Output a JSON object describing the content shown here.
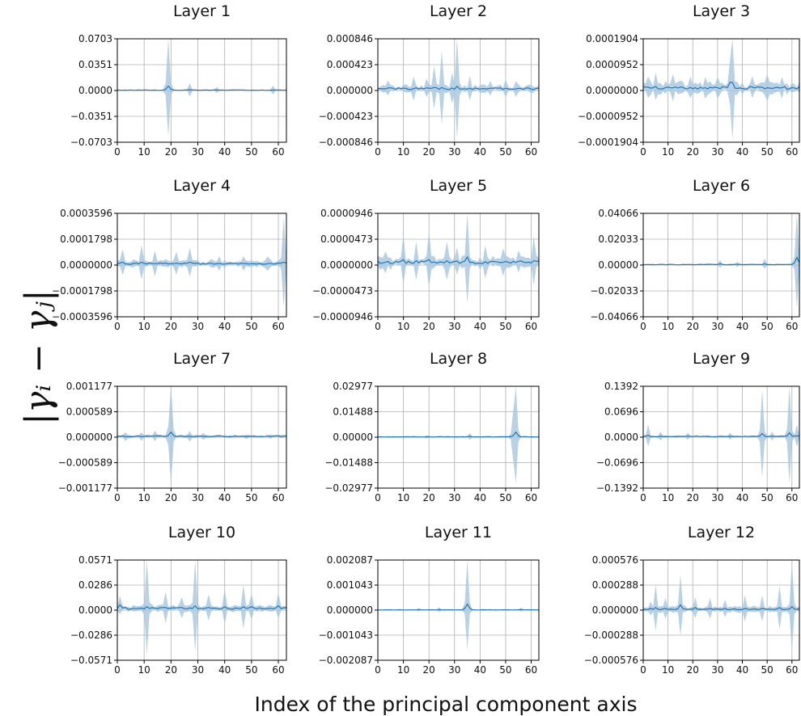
{
  "figure": {
    "xlabel": "Index of the principal component axis",
    "ylabel": "|γᵢ − γⱼ|"
  },
  "style": {
    "line_color": "#1f77b4",
    "band_color": "#a6c6de",
    "grid_color": "#b0b0b0"
  },
  "chart_data": [
    {
      "type": "area",
      "title": "Layer 1",
      "xlim": [
        0,
        63
      ],
      "ylim": [
        -0.0703,
        0.0703
      ],
      "yticks": [
        "0.0703",
        "0.0351",
        "0.0000",
        "−0.0351",
        "−0.0703"
      ],
      "xticks": [
        "0",
        "10",
        "20",
        "30",
        "40",
        "50",
        "60"
      ],
      "spikes": [
        [
          19,
          0.068,
          0.006
        ],
        [
          27,
          0.009,
          0.001
        ],
        [
          37,
          0.004,
          0
        ],
        [
          58,
          0.006,
          0
        ]
      ],
      "baseline": 0.0005,
      "noise": 0.001
    },
    {
      "type": "area",
      "title": "Layer 2",
      "xlim": [
        0,
        63
      ],
      "ylim": [
        -0.000846,
        0.000846
      ],
      "yticks": [
        "0.000846",
        "0.000423",
        "0.000000",
        "−0.000423",
        "−0.000846"
      ],
      "xticks": [
        "0",
        "10",
        "20",
        "30",
        "40",
        "50",
        "60"
      ],
      "spikes": [
        [
          4,
          0.00012,
          2e-05
        ],
        [
          14,
          0.0002,
          3e-05
        ],
        [
          19,
          0.00015,
          3e-05
        ],
        [
          22,
          0.00035,
          5e-05
        ],
        [
          25,
          0.0006,
          5e-05
        ],
        [
          29,
          0.00025,
          4e-05
        ],
        [
          31,
          0.00085,
          7e-05
        ],
        [
          36,
          0.0002,
          4e-05
        ],
        [
          44,
          0.00012,
          2e-05
        ],
        [
          50,
          0.00015,
          2e-05
        ],
        [
          54,
          0.00013,
          2e-05
        ]
      ],
      "baseline": 3e-05,
      "noise": 7e-05
    },
    {
      "type": "area",
      "title": "Layer 3",
      "xlim": [
        0,
        63
      ],
      "ylim": [
        -0.0001904,
        0.0001904
      ],
      "yticks": [
        "0.0001904",
        "0.0000952",
        "0.0000000",
        "−0.0000952",
        "−0.0001904"
      ],
      "xticks": [
        "0",
        "10",
        "20",
        "30",
        "40",
        "50",
        "60"
      ],
      "spikes": [
        [
          2,
          4e-05,
          1e-05
        ],
        [
          5,
          5e-05,
          1e-05
        ],
        [
          12,
          5e-05,
          1e-05
        ],
        [
          19,
          4e-05,
          1e-05
        ],
        [
          25,
          4e-05,
          1e-05
        ],
        [
          30,
          4e-05,
          1e-05
        ],
        [
          35,
          8e-05,
          3e-05
        ],
        [
          36,
          0.00021,
          3e-05
        ],
        [
          44,
          4e-05,
          1e-05
        ],
        [
          50,
          5e-05,
          1e-05
        ],
        [
          56,
          4e-05,
          1e-05
        ]
      ],
      "baseline": 1e-05,
      "noise": 2.5e-05
    },
    {
      "type": "area",
      "title": "Layer 4",
      "xlim": [
        0,
        63
      ],
      "ylim": [
        -0.0003596,
        0.0003596
      ],
      "yticks": [
        "0.0003596",
        "0.0001798",
        "0.0000000",
        "−0.0001798",
        "−0.0003596"
      ],
      "xticks": [
        "0",
        "10",
        "20",
        "30",
        "40",
        "50",
        "60"
      ],
      "spikes": [
        [
          2,
          9e-05,
          2e-05
        ],
        [
          9,
          0.00012,
          2e-05
        ],
        [
          14,
          9e-05,
          1e-05
        ],
        [
          22,
          8e-05,
          1e-05
        ],
        [
          27,
          0.0001,
          2e-05
        ],
        [
          38,
          5e-05,
          1e-05
        ],
        [
          47,
          5e-05,
          1e-05
        ],
        [
          56,
          5e-05,
          1e-05
        ],
        [
          62,
          0.00031,
          2e-05
        ]
      ],
      "baseline": 1e-05,
      "noise": 3e-05
    },
    {
      "type": "area",
      "title": "Layer 5",
      "xlim": [
        0,
        63
      ],
      "ylim": [
        -9.46e-05,
        9.46e-05
      ],
      "yticks": [
        "0.0000946",
        "0.0000473",
        "0.0000000",
        "−0.0000473",
        "−0.0000946"
      ],
      "xticks": [
        "0",
        "10",
        "20",
        "30",
        "40",
        "50",
        "60"
      ],
      "spikes": [
        [
          3,
          2e-05,
          5e-06
        ],
        [
          10,
          4.5e-05,
          1e-05
        ],
        [
          15,
          3.5e-05,
          8e-06
        ],
        [
          20,
          5e-05,
          1e-05
        ],
        [
          27,
          3.5e-05,
          8e-06
        ],
        [
          31,
          2.5e-05,
          5e-06
        ],
        [
          35,
          8.5e-05,
          1.5e-05
        ],
        [
          42,
          3e-05,
          6e-06
        ],
        [
          49,
          2.5e-05,
          5e-06
        ],
        [
          55,
          2e-05,
          5e-06
        ],
        [
          61,
          4.5e-05,
          8e-06
        ]
      ],
      "baseline": 5e-06,
      "noise": 1.2e-05
    },
    {
      "type": "area",
      "title": "Layer 6",
      "xlim": [
        0,
        63
      ],
      "ylim": [
        -0.04066,
        0.04066
      ],
      "yticks": [
        "0.04066",
        "0.02033",
        "0.00000",
        "−0.02033",
        "−0.04066"
      ],
      "xticks": [
        "0",
        "10",
        "20",
        "30",
        "40",
        "50",
        "60"
      ],
      "spikes": [
        [
          31,
          0.003,
          0.001
        ],
        [
          38,
          0.002,
          0.0005
        ],
        [
          49,
          0.004,
          0.001
        ],
        [
          62,
          0.04,
          0.006
        ]
      ],
      "baseline": 0.0004,
      "noise": 0.0006
    },
    {
      "type": "area",
      "title": "Layer 7",
      "xlim": [
        0,
        63
      ],
      "ylim": [
        -0.001177,
        0.001177
      ],
      "yticks": [
        "0.001177",
        "0.000589",
        "0.000000",
        "−0.000589",
        "−0.001177"
      ],
      "xticks": [
        "0",
        "10",
        "20",
        "30",
        "40",
        "50",
        "60"
      ],
      "spikes": [
        [
          3,
          0.0001,
          1e-05
        ],
        [
          9,
          0.0001,
          1e-05
        ],
        [
          14,
          0.00012,
          2e-05
        ],
        [
          19,
          0.00022,
          4e-05
        ],
        [
          20,
          0.0012,
          0.00012
        ],
        [
          27,
          0.00012,
          2e-05
        ],
        [
          32,
          8e-05,
          1e-05
        ],
        [
          48,
          5e-05,
          1e-05
        ],
        [
          57,
          5e-05,
          1e-05
        ]
      ],
      "baseline": 2e-05,
      "noise": 4e-05
    },
    {
      "type": "area",
      "title": "Layer 8",
      "xlim": [
        0,
        63
      ],
      "ylim": [
        -0.02977,
        0.02977
      ],
      "yticks": [
        "0.02977",
        "0.01488",
        "0.00000",
        "−0.01488",
        "−0.02977"
      ],
      "xticks": [
        "0",
        "10",
        "20",
        "30",
        "40",
        "50",
        "60"
      ],
      "spikes": [
        [
          19,
          0.001,
          0.0002
        ],
        [
          36,
          0.002,
          0.0005
        ],
        [
          53,
          0.0145,
          0.001
        ],
        [
          54,
          0.03,
          0.003
        ]
      ],
      "baseline": 0.0002,
      "noise": 0.0003
    },
    {
      "type": "area",
      "title": "Layer 9",
      "xlim": [
        0,
        63
      ],
      "ylim": [
        -0.1392,
        0.1392
      ],
      "yticks": [
        "0.1392",
        "0.0696",
        "0.0000",
        "−0.0696",
        "−0.1392"
      ],
      "xticks": [
        "0",
        "10",
        "20",
        "30",
        "40",
        "50",
        "60"
      ],
      "spikes": [
        [
          2,
          0.03,
          0.005
        ],
        [
          7,
          0.012,
          0.003
        ],
        [
          18,
          0.01,
          0.002
        ],
        [
          35,
          0.01,
          0.002
        ],
        [
          48,
          0.12,
          0.01
        ],
        [
          52,
          0.012,
          0.003
        ],
        [
          59,
          0.14,
          0.012
        ],
        [
          62,
          0.03,
          0.004
        ]
      ],
      "baseline": 0.002,
      "noise": 0.003
    },
    {
      "type": "area",
      "title": "Layer 10",
      "xlim": [
        0,
        63
      ],
      "ylim": [
        -0.0571,
        0.0571
      ],
      "yticks": [
        "0.0571",
        "0.0286",
        "0.0000",
        "−0.0286",
        "−0.0571"
      ],
      "xticks": [
        "0",
        "10",
        "20",
        "30",
        "40",
        "50",
        "60"
      ],
      "spikes": [
        [
          1,
          0.01,
          0.006
        ],
        [
          11,
          0.055,
          0.004
        ],
        [
          18,
          0.018,
          0.003
        ],
        [
          24,
          0.012,
          0.003
        ],
        [
          29,
          0.052,
          0.005
        ],
        [
          34,
          0.015,
          0.003
        ],
        [
          40,
          0.02,
          0.004
        ],
        [
          47,
          0.025,
          0.004
        ],
        [
          50,
          0.015,
          0.004
        ],
        [
          60,
          0.015,
          0.005
        ]
      ],
      "baseline": 0.002,
      "noise": 0.004
    },
    {
      "type": "area",
      "title": "Layer 11",
      "xlim": [
        0,
        63
      ],
      "ylim": [
        -0.002087,
        0.002087
      ],
      "yticks": [
        "0.002087",
        "0.001043",
        "0.000000",
        "−0.001043",
        "−0.002087"
      ],
      "xticks": [
        "0",
        "10",
        "20",
        "30",
        "40",
        "50",
        "60"
      ],
      "spikes": [
        [
          5,
          4e-05,
          1e-05
        ],
        [
          16,
          7e-05,
          2e-05
        ],
        [
          24,
          0.0001,
          2e-05
        ],
        [
          35,
          0.0019,
          0.00025
        ],
        [
          41,
          4e-05,
          1e-05
        ],
        [
          56,
          8e-05,
          2e-05
        ]
      ],
      "baseline": 1e-05,
      "noise": 2e-05
    },
    {
      "type": "area",
      "title": "Layer 12",
      "xlim": [
        0,
        63
      ],
      "ylim": [
        -0.000576,
        0.000576
      ],
      "yticks": [
        "0.000576",
        "0.000288",
        "0.000000",
        "−0.000288",
        "−0.000576"
      ],
      "xticks": [
        "0",
        "10",
        "20",
        "30",
        "40",
        "50",
        "60"
      ],
      "spikes": [
        [
          3,
          8e-05,
          2e-05
        ],
        [
          5,
          0.00026,
          3e-05
        ],
        [
          9,
          0.00012,
          2e-05
        ],
        [
          15,
          0.00035,
          6e-05
        ],
        [
          21,
          0.00012,
          3e-05
        ],
        [
          27,
          0.00012,
          2e-05
        ],
        [
          33,
          0.0001,
          2e-05
        ],
        [
          41,
          0.00015,
          2e-05
        ],
        [
          48,
          0.00015,
          2e-05
        ],
        [
          55,
          0.00025,
          3e-05
        ],
        [
          60,
          0.0005,
          4e-05
        ]
      ],
      "baseline": 1e-05,
      "noise": 4e-05
    }
  ]
}
